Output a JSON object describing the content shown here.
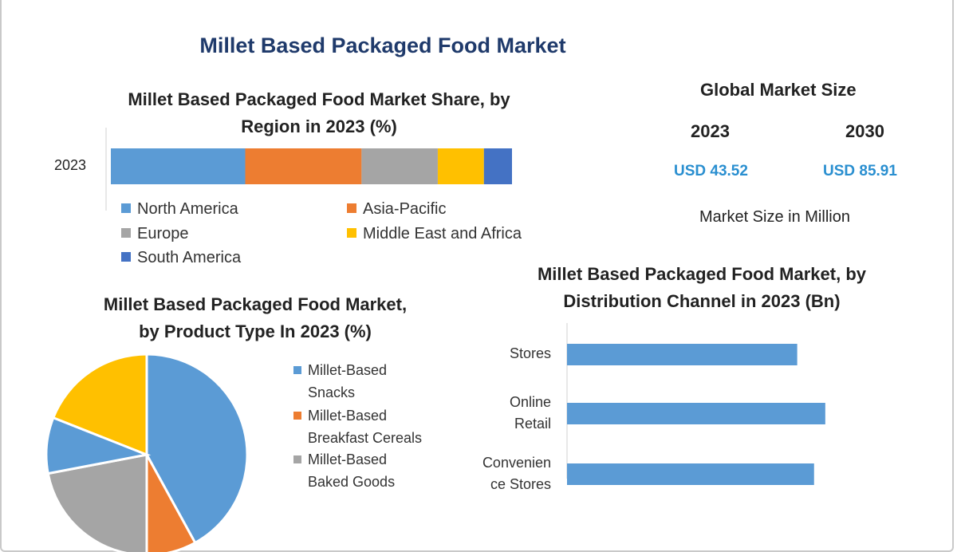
{
  "title": "Millet Based Packaged Food Market",
  "region_chart": {
    "title_line1": "Millet Based Packaged Food Market Share, by",
    "title_line2": "Region in 2023 (%)"
  },
  "market_size": {
    "title": "Global Market Size",
    "year_a": "2023",
    "year_b": "2030",
    "value_a": "USD 43.52",
    "value_b": "USD 85.91",
    "note": "Market Size in Million"
  },
  "product_chart": {
    "title_line1": "Millet Based Packaged Food Market,",
    "title_line2": "by Product Type In 2023 (%)",
    "legend": [
      {
        "line1": "Millet-Based",
        "line2": "Snacks"
      },
      {
        "line1": "Millet-Based",
        "line2": "Breakfast Cereals"
      },
      {
        "line1": "Millet-Based",
        "line2": "Baked Goods"
      }
    ]
  },
  "channel_chart": {
    "title_line1": "Millet Based Packaged Food Market, by",
    "title_line2": "Distribution Channel in 2023 (Bn)",
    "labels": [
      {
        "line1": "Stores",
        "line2": ""
      },
      {
        "line1": "Online",
        "line2": "Retail"
      },
      {
        "line1": "Convenien",
        "line2": "ce Stores"
      }
    ]
  },
  "chart_data": [
    {
      "type": "bar",
      "orientation": "horizontal-stacked-100",
      "categories": [
        "2023"
      ],
      "series": [
        {
          "name": "North America",
          "values": [
            33.5
          ],
          "color": "#5b9bd5"
        },
        {
          "name": "Asia-Pacific",
          "values": [
            29.0
          ],
          "color": "#ed7d31"
        },
        {
          "name": "Europe",
          "values": [
            19.0
          ],
          "color": "#a5a5a5"
        },
        {
          "name": "Middle East and Africa",
          "values": [
            11.5
          ],
          "color": "#ffc000"
        },
        {
          "name": "South America",
          "values": [
            7.0
          ],
          "color": "#4472c4"
        }
      ],
      "legend_placement": "bottom"
    },
    {
      "type": "pie",
      "slices": [
        {
          "label": "Millet-Based Snacks",
          "value": 42,
          "color": "#5b9bd5"
        },
        {
          "label": "Millet-Based Breakfast Cereals",
          "value": 8,
          "color": "#ed7d31"
        },
        {
          "label": "Millet-Based Baked Goods",
          "value": 22,
          "color": "#a5a5a5"
        },
        {
          "label": "",
          "value": 9,
          "color": "#5b9bd5"
        },
        {
          "label": "",
          "value": 19,
          "color": "#ffc000"
        }
      ],
      "legend_placement": "right"
    },
    {
      "type": "bar",
      "orientation": "horizontal",
      "categories": [
        "Stores",
        "Online Retail",
        "Convenience Stores"
      ],
      "values": [
        8.2,
        9.2,
        8.8
      ],
      "xlim": [
        0,
        10
      ],
      "color": "#5b9bd5",
      "grid": false
    }
  ]
}
